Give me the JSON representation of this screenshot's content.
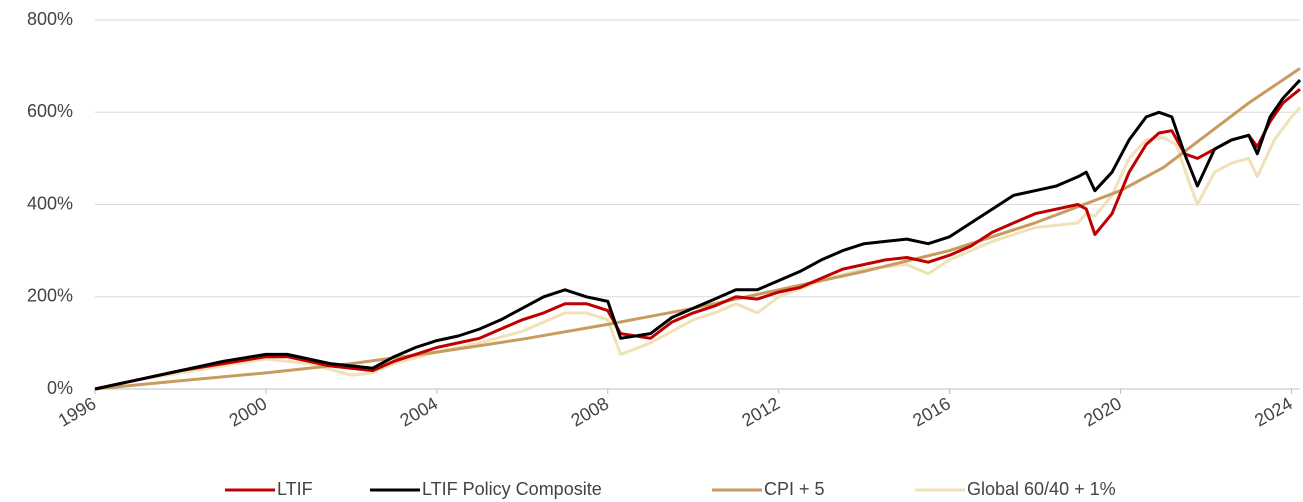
{
  "chart_data": {
    "type": "line",
    "xlim": [
      1996,
      2024.2
    ],
    "xticks": [
      1996,
      2000,
      2004,
      2008,
      2012,
      2016,
      2020,
      2024
    ],
    "ylim": [
      0,
      800
    ],
    "yticks": [
      {
        "value": 0,
        "label": "0%"
      },
      {
        "value": 200,
        "label": "200%"
      },
      {
        "value": 400,
        "label": "400%"
      },
      {
        "value": 600,
        "label": "600%"
      },
      {
        "value": 800,
        "label": "800%"
      }
    ],
    "grid": true,
    "legend": "bottom",
    "series": [
      {
        "name": "LTIF",
        "color": "#c00000",
        "x": [
          1996,
          1997,
          1998,
          1999,
          2000,
          2000.5,
          2001,
          2001.5,
          2002,
          2002.5,
          2003,
          2003.5,
          2004,
          2004.5,
          2005,
          2005.5,
          2006,
          2006.5,
          2007,
          2007.5,
          2008,
          2008.3,
          2009,
          2009.5,
          2010,
          2010.5,
          2011,
          2011.5,
          2012,
          2012.5,
          2013,
          2013.5,
          2014,
          2014.5,
          2015,
          2015.5,
          2016,
          2016.5,
          2017,
          2017.5,
          2018,
          2018.5,
          2019,
          2019.2,
          2019.4,
          2019.8,
          2020.2,
          2020.6,
          2020.9,
          2021.2,
          2021.5,
          2021.8,
          2022.2,
          2022.6,
          2023,
          2023.2,
          2023.5,
          2023.8,
          2024.2
        ],
        "values": [
          0,
          20,
          40,
          55,
          70,
          70,
          60,
          50,
          45,
          40,
          60,
          75,
          90,
          100,
          110,
          130,
          150,
          165,
          185,
          185,
          170,
          120,
          110,
          145,
          165,
          180,
          200,
          195,
          210,
          220,
          240,
          260,
          270,
          280,
          285,
          275,
          290,
          310,
          340,
          360,
          380,
          390,
          400,
          390,
          335,
          380,
          470,
          530,
          555,
          560,
          510,
          500,
          520,
          540,
          550,
          525,
          580,
          620,
          650
        ]
      },
      {
        "name": "LTIF Policy Composite",
        "color": "#000000",
        "x": [
          1996,
          1997,
          1998,
          1999,
          2000,
          2000.5,
          2001,
          2001.5,
          2002,
          2002.5,
          2003,
          2003.5,
          2004,
          2004.5,
          2005,
          2005.5,
          2006,
          2006.5,
          2007,
          2007.5,
          2008,
          2008.3,
          2009,
          2009.5,
          2010,
          2010.5,
          2011,
          2011.5,
          2012,
          2012.5,
          2013,
          2013.5,
          2014,
          2014.5,
          2015,
          2015.5,
          2016,
          2016.5,
          2017,
          2017.5,
          2018,
          2018.5,
          2019,
          2019.2,
          2019.4,
          2019.8,
          2020.2,
          2020.6,
          2020.9,
          2021.2,
          2021.5,
          2021.8,
          2022.2,
          2022.6,
          2023,
          2023.2,
          2023.5,
          2023.8,
          2024.2
        ],
        "values": [
          0,
          20,
          40,
          60,
          75,
          75,
          65,
          55,
          50,
          45,
          70,
          90,
          105,
          115,
          130,
          150,
          175,
          200,
          215,
          200,
          190,
          110,
          120,
          155,
          175,
          195,
          215,
          215,
          235,
          255,
          280,
          300,
          315,
          320,
          325,
          315,
          330,
          360,
          390,
          420,
          430,
          440,
          460,
          470,
          430,
          470,
          540,
          590,
          600,
          590,
          510,
          440,
          520,
          540,
          550,
          510,
          590,
          630,
          670
        ]
      },
      {
        "name": "CPI + 5",
        "color": "#c89b5e",
        "x": [
          1996,
          1998,
          2000,
          2002,
          2004,
          2006,
          2008,
          2010,
          2012,
          2014,
          2016,
          2018,
          2020,
          2021,
          2022,
          2023,
          2024.2
        ],
        "values": [
          0,
          18,
          35,
          55,
          80,
          108,
          140,
          175,
          215,
          255,
          300,
          360,
          430,
          480,
          550,
          620,
          695
        ]
      },
      {
        "name": "Global 60/40 + 1%",
        "color": "#f0e2b6",
        "x": [
          1996,
          1997,
          1998,
          1999,
          2000,
          2001,
          2002,
          2002.5,
          2003,
          2004,
          2005,
          2006,
          2007,
          2007.5,
          2008,
          2008.3,
          2009,
          2010,
          2010.5,
          2011,
          2011.5,
          2012,
          2013,
          2014,
          2015,
          2015.5,
          2016,
          2017,
          2018,
          2019,
          2019.2,
          2019.4,
          2019.8,
          2020.2,
          2020.6,
          2021,
          2021.3,
          2021.6,
          2021.8,
          2022.2,
          2022.6,
          2023,
          2023.2,
          2023.6,
          2024,
          2024.2
        ],
        "values": [
          0,
          20,
          35,
          50,
          65,
          55,
          30,
          35,
          55,
          80,
          100,
          125,
          165,
          165,
          150,
          75,
          100,
          150,
          165,
          185,
          165,
          200,
          235,
          260,
          270,
          250,
          280,
          320,
          350,
          360,
          380,
          375,
          420,
          500,
          540,
          545,
          530,
          450,
          400,
          470,
          490,
          500,
          460,
          540,
          590,
          610
        ]
      }
    ]
  }
}
